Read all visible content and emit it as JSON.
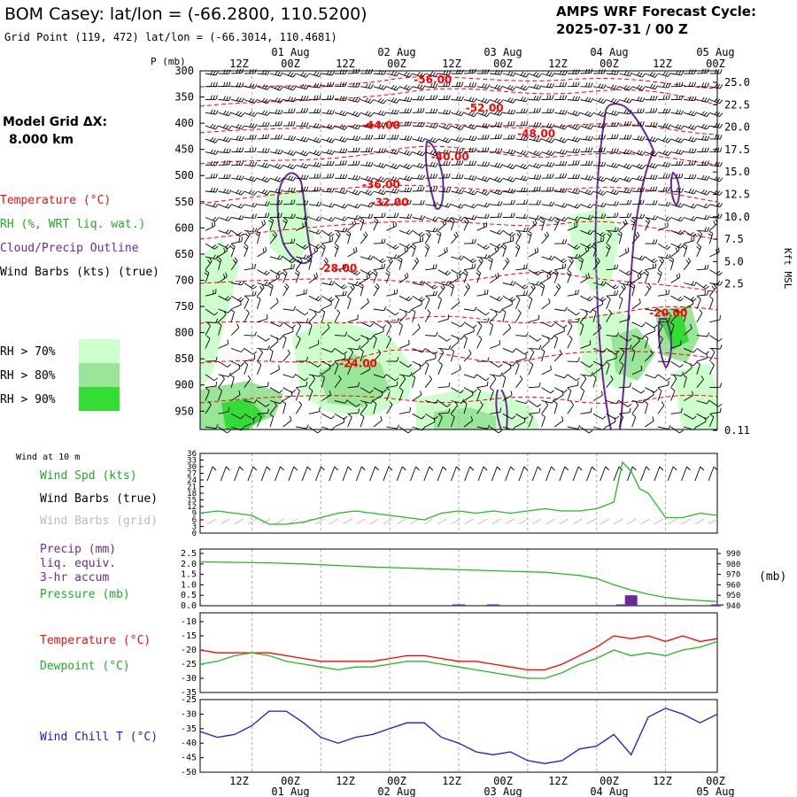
{
  "header": {
    "title": "BOM Casey:  lat/lon = (-66.2800, 110.5200)",
    "subtitle": "Grid Point (119, 472) lat/lon = (-66.3014, 110.4681)",
    "cycle_label": "AMPS WRF Forecast Cycle:",
    "cycle_value": "2025-07-31 / 00  Z"
  },
  "sidebar": {
    "model_grid": "Model Grid ΔX:",
    "model_grid_value": "8.000 km",
    "legend_temperature": "Temperature (°C)",
    "legend_rh": "RH (%, WRT liq. wat.)",
    "legend_cloud": "Cloud/Precip Outline",
    "legend_wind": "Wind Barbs (kts) (true)",
    "rh70": "RH > 70%",
    "rh80": "RH > 80%",
    "rh90": "RH > 90%",
    "wind_10m": "Wind at 10 m",
    "wind_spd": "Wind Spd (kts)",
    "wind_barbs_true": "Wind Barbs (true)",
    "wind_barbs_grid": "Wind Barbs (grid)",
    "precip_1": "Precip (mm)",
    "precip_2": "liq. equiv.",
    "precip_3": "3-hr accum",
    "pressure": "Pressure (mb)",
    "pressure_unit": "(mb)",
    "temp": "Temperature (°C)",
    "dewpoint": "Dewpoint (°C)",
    "windchill": "Wind Chill T (°C)",
    "y_left_title": "P (mb)",
    "y_right_title": "Kft MSL"
  },
  "colors": {
    "temperature": "#ff0000",
    "rh70": "#ccffcc",
    "rh80": "#99e699",
    "rh90": "#33dd33",
    "cloud": "#6a2a9a",
    "wind": "#000000",
    "wind_grid": "#bbbbbb",
    "windspeed": "#22bb22",
    "pressure": "#22bb22",
    "precip": "#6a2a9a",
    "dewpoint": "#22bb22",
    "windchill": "#1a1acc",
    "grid": "#aaaaaa"
  },
  "chart_data": [
    {
      "type": "heatmap",
      "name_ref": "cross-section",
      "x_ticks_top": [
        "12Z",
        "00Z",
        "12Z",
        "00Z",
        "12Z",
        "00Z",
        "12Z",
        "00Z",
        "12Z",
        "00Z"
      ],
      "x_dates_top": [
        "01 Aug",
        "02 Aug",
        "03 Aug",
        "04 Aug",
        "05 Aug"
      ],
      "pressure_levels_mb": [
        300,
        350,
        400,
        450,
        500,
        550,
        600,
        650,
        700,
        750,
        800,
        850,
        900,
        950
      ],
      "height_ticks_kft": [
        "25.0",
        "22.5",
        "20.0",
        "17.5",
        "15.0",
        "12.5",
        "10.0",
        "7.5",
        "5.0",
        "2.5",
        "0.11"
      ],
      "ylim_mb": [
        985,
        300
      ],
      "temperature_contour_labels": [
        {
          "t_hr": 81,
          "p": 317,
          "text": "-56.00"
        },
        {
          "t_hr": 99,
          "p": 371,
          "text": "-52.00"
        },
        {
          "t_hr": 63,
          "p": 404,
          "text": "-44.00"
        },
        {
          "t_hr": 117,
          "p": 420,
          "text": "-48.00"
        },
        {
          "t_hr": 87,
          "p": 464,
          "text": "-40.00"
        },
        {
          "t_hr": 63,
          "p": 517,
          "text": "-36.00"
        },
        {
          "t_hr": 66,
          "p": 551,
          "text": "-32.00"
        },
        {
          "t_hr": 48,
          "p": 677,
          "text": "-28.00"
        },
        {
          "t_hr": 163,
          "p": 763,
          "text": "-20.00"
        },
        {
          "t_hr": 55,
          "p": 859,
          "text": "-24.00"
        }
      ]
    },
    {
      "type": "line",
      "name_ref": "wind-10m",
      "ylim": [
        0,
        36
      ],
      "y_ticks": [
        0,
        3,
        6,
        9,
        12,
        15,
        18,
        21,
        24,
        27,
        30,
        33,
        36
      ],
      "x_hours": [
        0,
        6,
        12,
        18,
        24,
        30,
        36,
        42,
        48,
        54,
        60,
        66,
        72,
        78,
        84,
        90,
        96,
        102,
        108,
        114,
        120,
        126,
        132,
        138,
        144,
        147,
        150,
        153,
        156,
        162,
        168,
        174,
        180
      ],
      "series": [
        {
          "name": "Wind Spd (kts)",
          "values": [
            9,
            10,
            9,
            8,
            4,
            4,
            5,
            7,
            9,
            10,
            9,
            8,
            7,
            6,
            9,
            10,
            9,
            10,
            9,
            10,
            11,
            10,
            10,
            11,
            14,
            32,
            28,
            20,
            18,
            7,
            7,
            9,
            8
          ]
        }
      ]
    },
    {
      "type": "bar",
      "name_ref": "precip-pressure",
      "precip_ylim": [
        0,
        2.5
      ],
      "precip_ticks": [
        "0.0",
        "0.5",
        "1.0",
        "1.5",
        "2.0",
        "2.5"
      ],
      "pressure_ylim": [
        940,
        990
      ],
      "pressure_ticks": [
        940,
        950,
        960,
        970,
        980,
        990
      ],
      "precip_bars": [
        {
          "t_hr": 90,
          "value": 0.04
        },
        {
          "t_hr": 102,
          "value": 0.04
        },
        {
          "t_hr": 147,
          "value": 0.05
        },
        {
          "t_hr": 150,
          "value": 0.5
        },
        {
          "t_hr": 180,
          "value": 0.03
        }
      ],
      "x_hours": [
        0,
        12,
        24,
        36,
        48,
        60,
        72,
        84,
        96,
        108,
        120,
        132,
        138,
        144,
        150,
        156,
        162,
        168,
        174,
        180
      ],
      "series": [
        {
          "name": "Pressure (mb)",
          "values": [
            982,
            981.5,
            981,
            980,
            978.5,
            977,
            976,
            975,
            974,
            973,
            972,
            969,
            966,
            960,
            955,
            951,
            948,
            946,
            945,
            944
          ]
        }
      ]
    },
    {
      "type": "line",
      "name_ref": "temp-dewpoint",
      "ylim": [
        -35,
        -10
      ],
      "y_ticks": [
        -35,
        -30,
        -25,
        -20,
        -15,
        -10
      ],
      "x_hours": [
        0,
        6,
        12,
        18,
        24,
        30,
        36,
        42,
        48,
        54,
        60,
        66,
        72,
        78,
        84,
        90,
        96,
        102,
        108,
        114,
        120,
        126,
        132,
        138,
        144,
        150,
        156,
        162,
        168,
        174,
        180
      ],
      "series": [
        {
          "name": "Temperature",
          "values": [
            -20,
            -21,
            -21,
            -21,
            -21,
            -22,
            -23,
            -24,
            -24,
            -24,
            -24,
            -23,
            -22,
            -22,
            -23,
            -24,
            -24,
            -25,
            -26,
            -27,
            -27,
            -25,
            -22,
            -19,
            -15,
            -16,
            -15,
            -17,
            -15,
            -17,
            -16
          ]
        },
        {
          "name": "Dewpoint",
          "values": [
            -25,
            -24,
            -22,
            -21,
            -22,
            -24,
            -25,
            -26,
            -27,
            -26,
            -26,
            -25,
            -24,
            -24,
            -25,
            -26,
            -27,
            -28,
            -29,
            -30,
            -30,
            -28,
            -25,
            -23,
            -20,
            -22,
            -21,
            -22,
            -20,
            -19,
            -17
          ]
        }
      ]
    },
    {
      "type": "line",
      "name_ref": "windchill",
      "ylim": [
        -50,
        -25
      ],
      "y_ticks": [
        -50,
        -45,
        -40,
        -35,
        -30,
        -25
      ],
      "x_hours": [
        0,
        6,
        12,
        18,
        24,
        30,
        36,
        42,
        48,
        54,
        60,
        66,
        72,
        78,
        84,
        90,
        96,
        102,
        108,
        114,
        120,
        126,
        132,
        138,
        144,
        150,
        156,
        162,
        168,
        174,
        180
      ],
      "series": [
        {
          "name": "Wind Chill T",
          "values": [
            -36,
            -38,
            -37,
            -34,
            -29,
            -29,
            -33,
            -38,
            -40,
            -38,
            -37,
            -35,
            -33,
            -33,
            -38,
            -40,
            -43,
            -44,
            -43,
            -46,
            -47,
            -46,
            -42,
            -41,
            -37,
            -44,
            -31,
            -28,
            -30,
            -33,
            -30
          ]
        }
      ]
    }
  ],
  "bottom_axis": {
    "times": [
      "12Z",
      "00Z",
      "12Z",
      "00Z",
      "12Z",
      "00Z",
      "12Z",
      "00Z",
      "12Z",
      "00Z"
    ],
    "dates": [
      "01 Aug",
      "02 Aug",
      "03 Aug",
      "04 Aug",
      "05 Aug"
    ]
  }
}
